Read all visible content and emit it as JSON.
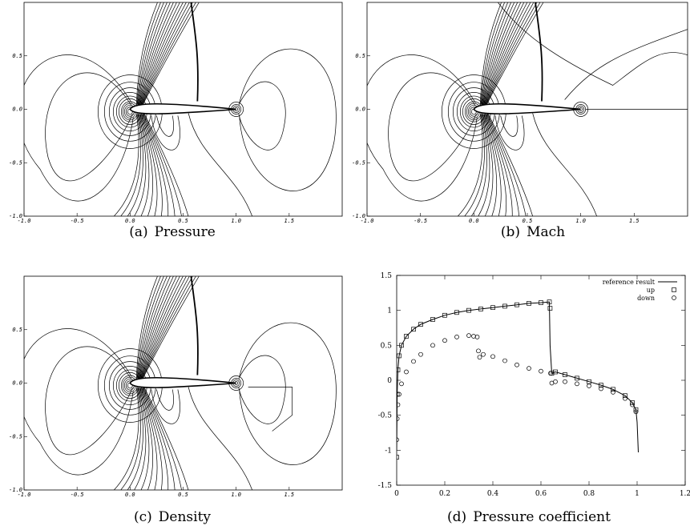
{
  "panels": [
    {
      "id": "a",
      "tag": "(a)",
      "caption": "Pressure"
    },
    {
      "id": "b",
      "tag": "(b)",
      "caption": "Mach"
    },
    {
      "id": "c",
      "tag": "(c)",
      "caption": "Density"
    },
    {
      "id": "d",
      "tag": "(d)",
      "caption": "Pressure coefficient"
    }
  ],
  "contour_axes": {
    "x_ticks": [
      "-1.0",
      "-0.5",
      "0.0",
      "0.5",
      "1.0",
      "1.5"
    ],
    "y_ticks": [
      "0.5",
      "0.0",
      "-0.5",
      "-1.0"
    ]
  },
  "chart_data": [
    {
      "type": "contour",
      "panel": "a",
      "field": "Pressure",
      "xlim": [
        -1.0,
        2.0
      ],
      "ylim": [
        -1.0,
        1.0
      ],
      "airfoil": {
        "leading_edge_x": 0.0,
        "trailing_edge_x": 1.0
      },
      "shock_x": 0.65
    },
    {
      "type": "contour",
      "panel": "b",
      "field": "Mach",
      "xlim": [
        -1.0,
        2.0
      ],
      "ylim": [
        -1.0,
        1.0
      ],
      "airfoil": {
        "leading_edge_x": 0.0,
        "trailing_edge_x": 1.0
      },
      "shock_x": 0.65
    },
    {
      "type": "contour",
      "panel": "c",
      "field": "Density",
      "xlim": [
        -1.0,
        2.0
      ],
      "ylim": [
        -1.0,
        1.0
      ],
      "airfoil": {
        "leading_edge_x": 0.0,
        "trailing_edge_x": 1.0
      },
      "shock_x": 0.65
    },
    {
      "type": "line",
      "panel": "d",
      "xlim": [
        0,
        1.2
      ],
      "ylim": [
        -1.5,
        1.5
      ],
      "x_ticks": [
        "0",
        "0.2",
        "0.4",
        "0.6",
        "0.8",
        "1",
        "1.2"
      ],
      "y_ticks": [
        "1.5",
        "1",
        "0.5",
        "0",
        "-0.5",
        "-1",
        "-1.5"
      ],
      "legend_position": "top-right",
      "series": [
        {
          "name": "reference result",
          "marker": "line",
          "x": [
            0.0,
            0.002,
            0.005,
            0.01,
            0.02,
            0.04,
            0.07,
            0.1,
            0.15,
            0.2,
            0.25,
            0.3,
            0.35,
            0.4,
            0.45,
            0.5,
            0.55,
            0.6,
            0.635,
            0.638,
            0.645,
            0.66,
            0.7,
            0.75,
            0.8,
            0.85,
            0.9,
            0.95,
            0.98,
            0.995,
            1.0,
            1.005
          ],
          "y": [
            -1.0,
            -0.2,
            0.15,
            0.35,
            0.5,
            0.63,
            0.73,
            0.8,
            0.87,
            0.93,
            0.97,
            1.0,
            1.02,
            1.04,
            1.06,
            1.08,
            1.1,
            1.11,
            1.12,
            0.5,
            0.1,
            0.12,
            0.08,
            0.03,
            -0.02,
            -0.07,
            -0.13,
            -0.22,
            -0.32,
            -0.42,
            -0.6,
            -1.03
          ]
        },
        {
          "name": "up",
          "marker": "square",
          "x": [
            0.0,
            0.002,
            0.005,
            0.01,
            0.02,
            0.04,
            0.07,
            0.1,
            0.15,
            0.2,
            0.25,
            0.3,
            0.35,
            0.4,
            0.45,
            0.5,
            0.55,
            0.6,
            0.635,
            0.638,
            0.645,
            0.66,
            0.7,
            0.75,
            0.8,
            0.85,
            0.9,
            0.95,
            0.98,
            0.995
          ],
          "y": [
            -1.1,
            -0.2,
            0.15,
            0.35,
            0.5,
            0.63,
            0.73,
            0.8,
            0.87,
            0.93,
            0.97,
            1.0,
            1.02,
            1.04,
            1.06,
            1.08,
            1.1,
            1.11,
            1.12,
            1.03,
            0.1,
            0.12,
            0.08,
            0.03,
            -0.02,
            -0.07,
            -0.13,
            -0.22,
            -0.32,
            -0.42
          ]
        },
        {
          "name": "down",
          "marker": "circle",
          "x": [
            0.0,
            0.002,
            0.005,
            0.01,
            0.02,
            0.04,
            0.07,
            0.1,
            0.15,
            0.2,
            0.25,
            0.3,
            0.32,
            0.335,
            0.34,
            0.345,
            0.36,
            0.4,
            0.45,
            0.5,
            0.55,
            0.6,
            0.64,
            0.645,
            0.66,
            0.7,
            0.75,
            0.8,
            0.85,
            0.9,
            0.95,
            0.98,
            0.995
          ],
          "y": [
            -0.85,
            -0.55,
            -0.35,
            -0.2,
            -0.05,
            0.12,
            0.27,
            0.37,
            0.5,
            0.57,
            0.62,
            0.64,
            0.63,
            0.62,
            0.42,
            0.33,
            0.37,
            0.34,
            0.28,
            0.22,
            0.17,
            0.13,
            0.1,
            -0.04,
            -0.02,
            -0.02,
            -0.05,
            -0.08,
            -0.12,
            -0.17,
            -0.26,
            -0.35,
            -0.45
          ]
        }
      ]
    }
  ]
}
